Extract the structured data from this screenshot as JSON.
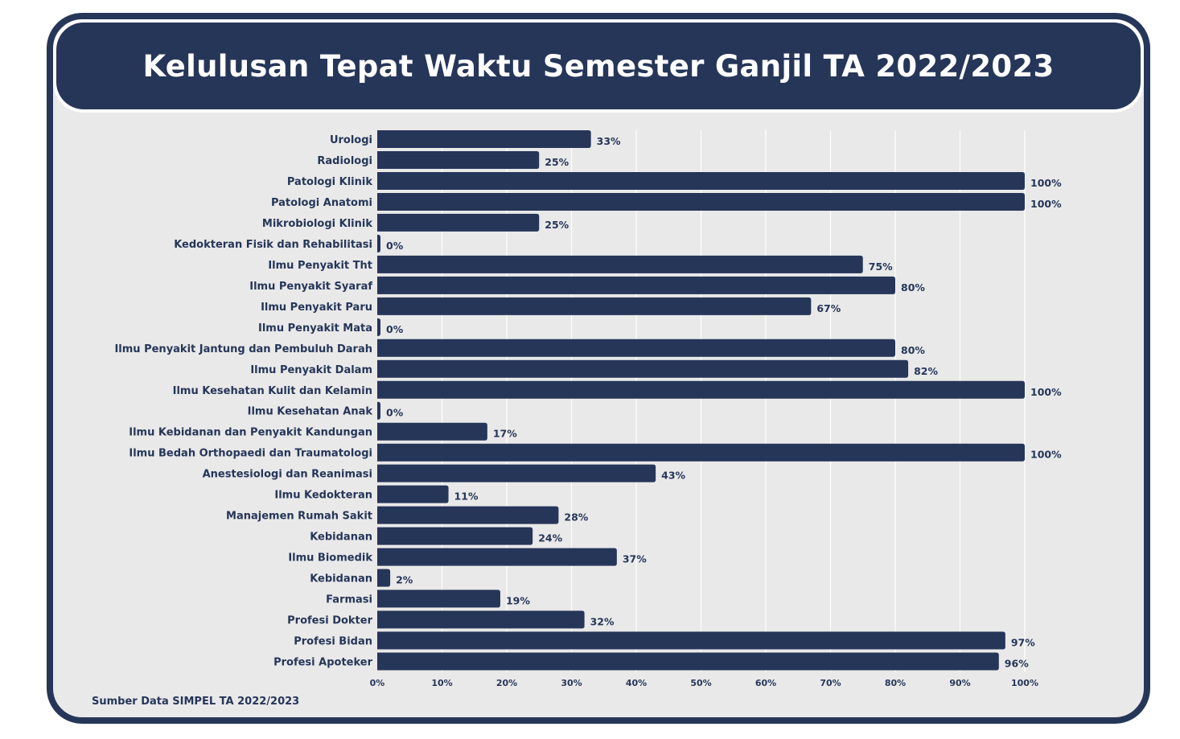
{
  "title": "Kelulusan Tepat Waktu Semester Ganjil TA 2022/2023",
  "source": "Sumber Data SIMPEL TA 2022/2023",
  "colors": {
    "bar": "#263659",
    "header": "#263659",
    "background": "#e9e9e9",
    "grid": "#ffffff"
  },
  "chart_data": {
    "type": "bar",
    "orientation": "horizontal",
    "categories": [
      "Urologi",
      "Radiologi",
      "Patologi Klinik",
      "Patologi Anatomi",
      "Mikrobiologi Klinik",
      "Kedokteran Fisik dan Rehabilitasi",
      "Ilmu Penyakit Tht",
      "Ilmu Penyakit Syaraf",
      "Ilmu Penyakit Paru",
      "Ilmu Penyakit Mata",
      "Ilmu Penyakit Jantung dan Pembuluh Darah",
      "Ilmu Penyakit Dalam",
      "Ilmu Kesehatan Kulit dan Kelamin",
      "Ilmu Kesehatan Anak",
      "Ilmu Kebidanan dan Penyakit Kandungan",
      "Ilmu Bedah Orthopaedi dan Traumatologi",
      "Anestesiologi dan Reanimasi",
      "Ilmu Kedokteran",
      "Manajemen Rumah Sakit",
      "Kebidanan",
      "Ilmu Biomedik",
      "Kebidanan",
      "Farmasi",
      "Profesi Dokter",
      "Profesi Bidan",
      "Profesi Apoteker"
    ],
    "values": [
      33,
      25,
      100,
      100,
      25,
      0,
      75,
      80,
      67,
      0,
      80,
      82,
      100,
      0,
      17,
      100,
      43,
      11,
      28,
      24,
      37,
      2,
      19,
      32,
      97,
      96
    ],
    "value_labels": [
      "33%",
      "25%",
      "100%",
      "100%",
      "25%",
      "0%",
      "75%",
      "80%",
      "67%",
      "0%",
      "80%",
      "82%",
      "100%",
      "0%",
      "17%",
      "100%",
      "43%",
      "11%",
      "28%",
      "24%",
      "37%",
      "2%",
      "19%",
      "32%",
      "97%",
      "96%"
    ],
    "xlim": [
      0,
      100
    ],
    "xticks": [
      0,
      10,
      20,
      30,
      40,
      50,
      60,
      70,
      80,
      90,
      100
    ],
    "xtick_labels": [
      "0%",
      "10%",
      "20%",
      "30%",
      "40%",
      "50%",
      "60%",
      "70%",
      "80%",
      "90%",
      "100%"
    ],
    "grid": true,
    "legend": "none"
  }
}
